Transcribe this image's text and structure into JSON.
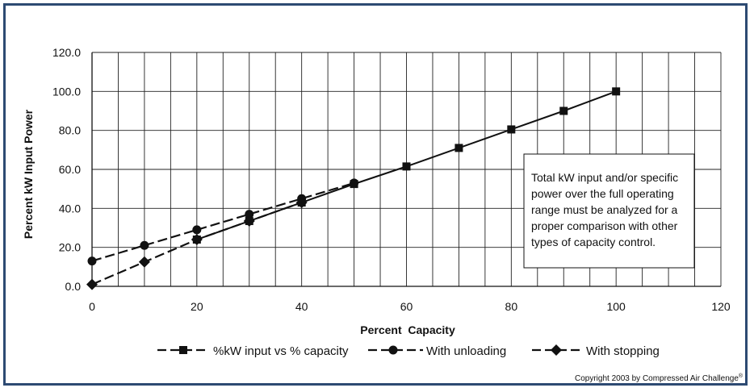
{
  "chart_data": {
    "type": "line",
    "xlabel": "Percent  Capacity",
    "ylabel": "Percent kW Input Power",
    "xlim": [
      0,
      120
    ],
    "ylim": [
      0,
      120
    ],
    "x_ticks": [
      "0",
      "20",
      "40",
      "60",
      "80",
      "100",
      "120"
    ],
    "y_ticks": [
      "0.0",
      "20.0",
      "40.0",
      "60.0",
      "80.0",
      "100.0",
      "120.0"
    ],
    "grid": true,
    "legend_position": "bottom",
    "series": [
      {
        "name": "%kW input vs % capacity",
        "marker": "square",
        "x": [
          20,
          30,
          40,
          50,
          60,
          70,
          80,
          90,
          100
        ],
        "y": [
          24,
          33.5,
          43,
          52.5,
          61.5,
          71,
          80.5,
          90,
          100
        ]
      },
      {
        "name": "With unloading",
        "marker": "circle",
        "x": [
          0,
          10,
          20,
          30,
          40,
          50
        ],
        "y": [
          13,
          21,
          29,
          37,
          45,
          53
        ]
      },
      {
        "name": "With stopping",
        "marker": "diamond",
        "x": [
          0,
          10,
          20,
          30,
          40
        ],
        "y": [
          1,
          12.5,
          24,
          33.5,
          43
        ]
      }
    ],
    "annotation": "Total kW input and/or specific power over the full operating range must be analyzed for a proper comparison with other types of capacity control."
  },
  "annotation_lines": [
    "Total kW input and/or specific",
    "power over the full operating",
    "range must be analyzed for a",
    "proper comparison with other",
    "types of capacity control."
  ],
  "copyright": "Copyright 2003 by Compressed Air Challenge",
  "copyright_mark": "®",
  "colors": {
    "frame": "#2d4a72",
    "ink": "#111111"
  }
}
